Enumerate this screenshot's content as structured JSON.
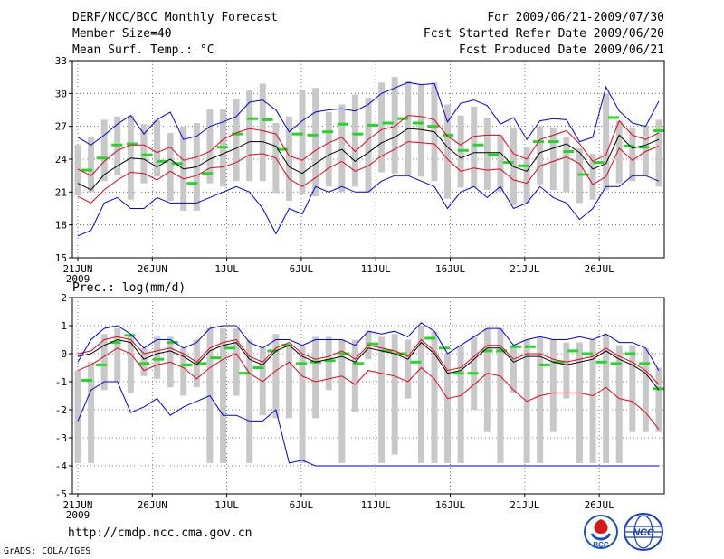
{
  "header": {
    "title": "DERF/NCC/BCC Monthly Forecast",
    "member_size": "Member Size=40",
    "variable": "Mean Surf. Temp.: °C",
    "period": "For 2009/06/21-2009/07/30",
    "started": "Fcst Started Refer Date 2009/06/20",
    "produced": "Fcst Produced Date 2009/06/21"
  },
  "footer": {
    "url": "http://cmdp.ncc.cma.gov.cn",
    "software": "GrADS: COLA/IGES"
  },
  "logos": [
    {
      "label": "BCC"
    },
    {
      "label": "NCC"
    }
  ],
  "colors": {
    "mean": "#000000",
    "spread": "#e8001c",
    "extreme": "#0000e0",
    "member": "#c8c8c8",
    "observed": "#22d822"
  },
  "chart_data": [
    {
      "type": "line",
      "title": "Mean Surf. Temp.: °C",
      "xlabel": "",
      "ylabel": "",
      "days": 40,
      "x_ticks": [
        {
          "day": 1,
          "label": "21JUN"
        },
        {
          "day": 6,
          "label": "26JUN"
        },
        {
          "day": 11,
          "label": "1JUL"
        },
        {
          "day": 16,
          "label": "6JUL"
        },
        {
          "day": 21,
          "label": "11JUL"
        },
        {
          "day": 26,
          "label": "16JUL"
        },
        {
          "day": 31,
          "label": "21JUL"
        },
        {
          "day": 36,
          "label": "26JUL"
        }
      ],
      "year_label": "2009",
      "y_ticks": [
        "15",
        "18",
        "21",
        "24",
        "27",
        "30",
        "33"
      ],
      "ylim": [
        15,
        33
      ],
      "grid": true,
      "series": [
        {
          "name": "ensemble mean",
          "role": "mean",
          "values": [
            21.8,
            21.2,
            22.6,
            23.4,
            24.1,
            24.0,
            23.3,
            24.0,
            23.1,
            23.3,
            24.0,
            24.5,
            25.0,
            25.6,
            25.6,
            25.2,
            23.3,
            22.7,
            23.6,
            24.4,
            24.9,
            23.8,
            24.6,
            25.5,
            26.0,
            26.8,
            26.7,
            26.5,
            25.1,
            24.1,
            24.6,
            24.6,
            24.6,
            23.3,
            22.9,
            24.6,
            25.0,
            25.4,
            24.6,
            23.1,
            23.6,
            26.2,
            25.0,
            25.3,
            25.8
          ]
        },
        {
          "name": "mean + spread",
          "role": "spread",
          "values": [
            23.1,
            22.5,
            23.8,
            24.8,
            25.3,
            25.3,
            24.6,
            25.1,
            23.9,
            24.2,
            24.7,
            25.8,
            26.4,
            26.8,
            26.6,
            26.3,
            24.3,
            23.9,
            24.8,
            25.5,
            26.0,
            24.7,
            25.8,
            26.7,
            27.0,
            28.0,
            27.9,
            27.6,
            26.1,
            25.3,
            26.1,
            26.2,
            26.2,
            24.5,
            24.0,
            25.8,
            26.2,
            26.6,
            25.4,
            23.8,
            24.4,
            27.5,
            26.2,
            25.8,
            26.4
          ]
        },
        {
          "name": "mean - spread",
          "role": "spread",
          "values": [
            20.6,
            20.0,
            21.2,
            22.1,
            22.8,
            22.7,
            22.1,
            22.9,
            22.2,
            22.5,
            23.2,
            23.3,
            23.7,
            24.4,
            24.5,
            24.1,
            22.2,
            21.5,
            22.3,
            23.2,
            23.8,
            22.9,
            23.4,
            24.3,
            24.9,
            25.6,
            25.5,
            25.4,
            24.0,
            22.9,
            23.2,
            23.0,
            23.1,
            22.1,
            21.8,
            23.4,
            23.8,
            24.2,
            23.6,
            21.7,
            22.4,
            25.0,
            23.9,
            24.7,
            25.2
          ]
        },
        {
          "name": "ensemble maximum",
          "role": "extreme",
          "values": [
            26.0,
            25.3,
            26.2,
            27.2,
            28.0,
            26.3,
            27.6,
            28.3,
            25.8,
            26.1,
            27.0,
            27.4,
            27.9,
            29.2,
            29.4,
            28.5,
            26.5,
            27.5,
            28.3,
            28.5,
            28.6,
            28.4,
            29.0,
            30.0,
            30.5,
            31.0,
            30.8,
            30.9,
            27.4,
            29.1,
            29.4,
            28.9,
            27.2,
            27.8,
            25.8,
            27.5,
            27.7,
            27.6,
            25.6,
            26.0,
            30.6,
            28.4,
            27.3,
            27.0,
            29.3
          ]
        },
        {
          "name": "ensemble minimum",
          "role": "extreme",
          "values": [
            17.0,
            17.5,
            20.0,
            20.5,
            19.5,
            19.5,
            20.5,
            20.0,
            20.0,
            20.0,
            20.5,
            21.0,
            21.5,
            21.0,
            19.5,
            17.2,
            19.5,
            19.0,
            21.5,
            21.0,
            21.5,
            21.0,
            21.0,
            22.0,
            22.5,
            22.5,
            22.0,
            21.5,
            19.5,
            21.0,
            21.5,
            20.5,
            21.5,
            19.5,
            20.0,
            21.5,
            20.5,
            20.0,
            18.5,
            19.5,
            21.5,
            21.5,
            22.5,
            22.5,
            22.0
          ]
        }
      ],
      "members": [
        [
          20.7,
          25.3
        ],
        [
          21.0,
          26.0
        ],
        [
          22.0,
          27.6
        ],
        [
          22.5,
          27.9
        ],
        [
          20.3,
          28.0
        ],
        [
          21.8,
          27.2
        ],
        [
          22.4,
          27.6
        ],
        [
          20.2,
          26.4
        ],
        [
          19.3,
          27.0
        ],
        [
          19.3,
          27.3
        ],
        [
          21.8,
          28.6
        ],
        [
          21.5,
          28.6
        ],
        [
          22.0,
          29.5
        ],
        [
          22.0,
          30.3
        ],
        [
          22.0,
          30.9
        ],
        [
          20.9,
          27.3
        ],
        [
          20.2,
          27.9
        ],
        [
          20.8,
          30.3
        ],
        [
          20.6,
          30.5
        ],
        [
          21.5,
          28.3
        ],
        [
          21.0,
          29.0
        ],
        [
          21.5,
          29.9
        ],
        [
          21.0,
          29.6
        ],
        [
          22.8,
          31.0
        ],
        [
          22.7,
          31.5
        ],
        [
          22.5,
          31.1
        ],
        [
          22.4,
          30.8
        ],
        [
          22.0,
          31.0
        ],
        [
          20.4,
          29.0
        ],
        [
          21.4,
          28.0
        ],
        [
          21.4,
          28.8
        ],
        [
          21.2,
          27.8
        ],
        [
          21.0,
          26.2
        ],
        [
          19.8,
          26.9
        ],
        [
          20.0,
          25.1
        ],
        [
          21.7,
          27.0
        ],
        [
          21.2,
          26.8
        ],
        [
          21.0,
          26.0
        ],
        [
          20.0,
          25.0
        ],
        [
          20.3,
          24.5
        ],
        [
          21.2,
          30.0
        ],
        [
          21.8,
          27.5
        ],
        [
          22.0,
          26.9
        ],
        [
          22.5,
          27.1
        ],
        [
          21.5,
          27.6
        ]
      ],
      "observed": [
        23.0,
        24.1,
        25.3,
        25.4,
        24.4,
        23.8,
        23.6,
        21.8,
        22.7,
        25.1,
        26.3,
        27.7,
        27.6,
        24.9,
        26.3,
        26.2,
        26.5,
        27.2,
        26.3,
        27.1,
        27.3,
        27.7,
        27.3,
        27.0,
        26.2,
        24.8,
        25.3,
        24.4,
        23.7,
        23.4,
        25.6,
        25.6,
        24.7,
        22.6,
        23.7,
        27.8,
        25.2,
        25.1,
        26.6
      ]
    },
    {
      "type": "line",
      "title": "Prec.: log(mm/d)",
      "xlabel": "",
      "ylabel": "",
      "days": 40,
      "x_ticks": [
        {
          "day": 1,
          "label": "21JUN"
        },
        {
          "day": 6,
          "label": "26JUN"
        },
        {
          "day": 11,
          "label": "1JUL"
        },
        {
          "day": 16,
          "label": "6JUL"
        },
        {
          "day": 21,
          "label": "11JUL"
        },
        {
          "day": 26,
          "label": "16JUL"
        },
        {
          "day": 31,
          "label": "21JUL"
        },
        {
          "day": 36,
          "label": "26JUL"
        }
      ],
      "year_label": "2009",
      "y_ticks": [
        "-5",
        "-4",
        "-3",
        "-2",
        "-1",
        "0",
        "1",
        "2"
      ],
      "ylim": [
        -5,
        2
      ],
      "grid": true,
      "series": [
        {
          "name": "ensemble mean",
          "role": "mean",
          "values": [
            -0.1,
            0.0,
            0.3,
            0.5,
            0.4,
            -0.2,
            0.0,
            0.1,
            -0.1,
            -0.4,
            0.1,
            0.3,
            0.4,
            -0.2,
            -0.4,
            0.1,
            0.3,
            -0.1,
            -0.3,
            -0.2,
            -0.1,
            -0.3,
            0.2,
            0.1,
            0.0,
            -0.2,
            0.4,
            0.0,
            -0.7,
            -0.6,
            -0.2,
            0.2,
            0.2,
            -0.3,
            -0.1,
            -0.1,
            -0.3,
            -0.4,
            -0.3,
            -0.2,
            0.1,
            -0.2,
            -0.4,
            -0.7,
            -1.3
          ]
        },
        {
          "name": "mean + spread",
          "role": "spread",
          "values": [
            0.0,
            0.1,
            0.5,
            0.6,
            0.5,
            0.0,
            0.1,
            0.2,
            0.0,
            -0.3,
            0.2,
            0.4,
            0.5,
            -0.1,
            -0.3,
            0.2,
            0.4,
            0.0,
            -0.2,
            -0.1,
            0.1,
            -0.2,
            0.3,
            0.2,
            0.1,
            -0.1,
            0.5,
            0.1,
            -0.6,
            -0.5,
            -0.1,
            0.3,
            0.3,
            -0.2,
            0.0,
            0.0,
            -0.2,
            -0.3,
            -0.2,
            -0.1,
            0.2,
            -0.1,
            -0.3,
            -0.6,
            -1.1
          ]
        },
        {
          "name": "mean - spread",
          "role": "spread",
          "values": [
            -0.6,
            -0.4,
            -0.1,
            0.2,
            0.0,
            -0.6,
            -0.4,
            -0.3,
            -0.5,
            -0.9,
            -0.5,
            -0.2,
            0.0,
            -0.7,
            -1.0,
            -0.6,
            -0.3,
            -0.8,
            -1.0,
            -0.9,
            -0.8,
            -1.1,
            -0.6,
            -0.7,
            -0.8,
            -1.0,
            -0.5,
            -0.9,
            -1.6,
            -1.5,
            -1.1,
            -0.7,
            -0.8,
            -1.3,
            -1.7,
            -1.5,
            -1.4,
            -1.4,
            -1.4,
            -1.5,
            -1.2,
            -1.6,
            -1.7,
            -2.1,
            -2.7
          ]
        },
        {
          "name": "ensemble maximum",
          "role": "extreme",
          "values": [
            -0.3,
            0.5,
            0.9,
            1.0,
            0.7,
            0.2,
            0.5,
            0.5,
            0.2,
            0.4,
            0.9,
            1.0,
            1.0,
            0.4,
            0.2,
            0.5,
            0.5,
            0.3,
            0.5,
            0.5,
            0.5,
            0.3,
            0.8,
            0.7,
            0.8,
            0.6,
            1.1,
            0.8,
            0.0,
            0.3,
            0.6,
            0.9,
            0.9,
            0.3,
            0.5,
            0.6,
            0.5,
            0.5,
            0.6,
            0.5,
            0.7,
            0.4,
            0.4,
            0.2,
            -0.6
          ]
        },
        {
          "name": "ensemble minimum",
          "role": "extreme",
          "values": [
            -2.4,
            -1.3,
            -1.0,
            -1.0,
            -2.1,
            -1.9,
            -1.6,
            -2.2,
            -1.9,
            -1.7,
            -1.5,
            -2.2,
            -2.2,
            -2.4,
            -2.4,
            -2.0,
            -3.9,
            -3.8,
            -4.0,
            -4.0,
            -4.0,
            -4.0,
            -4.0,
            -4.0,
            -4.0,
            -4.0,
            -4.0,
            -4.0,
            -4.0,
            -4.0,
            -4.0,
            -4.0,
            -4.0,
            -4.0,
            -4.0,
            -4.0,
            -4.0,
            -4.0,
            -4.0,
            -4.0,
            -4.0,
            -4.0,
            -4.0,
            -4.0,
            -4.0
          ]
        },
        {
          "name": "observed mean",
          "role": "mean",
          "values": [
            -0.5,
            -0.4,
            0.4,
            0.5,
            0.2,
            -0.3,
            -0.1,
            0.1,
            -0.3,
            -0.5,
            -0.2,
            0.4,
            0.4,
            -0.4,
            -0.5,
            0.0,
            0.3,
            -0.2,
            -0.4,
            -0.3,
            -0.2,
            -0.4,
            0.1,
            0.0,
            -0.1,
            -0.3,
            0.3,
            -0.1,
            -0.8,
            -0.7,
            -0.3,
            0.1,
            0.1,
            -0.4,
            -0.2,
            -0.2,
            -0.4,
            -0.5,
            -0.4,
            -0.3,
            0.0,
            -0.3,
            -0.5,
            -0.8,
            -1.5
          ]
        }
      ],
      "members": [
        [
          -3.9,
          -0.6
        ],
        [
          -3.9,
          -0.3
        ],
        [
          -1.3,
          0.7
        ],
        [
          -1.0,
          0.9
        ],
        [
          -1.4,
          0.7
        ],
        [
          -0.8,
          0.2
        ],
        [
          -0.9,
          0.6
        ],
        [
          -1.2,
          0.6
        ],
        [
          -1.5,
          0.2
        ],
        [
          -1.2,
          0.5
        ],
        [
          -3.9,
          0.9
        ],
        [
          -3.9,
          0.9
        ],
        [
          -1.5,
          0.9
        ],
        [
          -3.9,
          0.5
        ],
        [
          -2.2,
          0.2
        ],
        [
          -2.3,
          0.7
        ],
        [
          -2.3,
          0.3
        ],
        [
          -3.9,
          0.3
        ],
        [
          -2.3,
          0.6
        ],
        [
          -1.3,
          0.6
        ],
        [
          -3.9,
          0.5
        ],
        [
          -2.1,
          0.5
        ],
        [
          -0.2,
          0.8
        ],
        [
          -3.9,
          0.6
        ],
        [
          -3.6,
          0.7
        ],
        [
          -1.6,
          0.5
        ],
        [
          -3.9,
          1.0
        ],
        [
          -3.9,
          0.8
        ],
        [
          -3.9,
          0.0
        ],
        [
          -3.9,
          0.3
        ],
        [
          -2.0,
          0.6
        ],
        [
          -2.8,
          0.9
        ],
        [
          -3.9,
          0.9
        ],
        [
          -1.4,
          0.3
        ],
        [
          -3.9,
          0.5
        ],
        [
          -3.9,
          0.6
        ],
        [
          -2.8,
          0.5
        ],
        [
          -1.6,
          0.4
        ],
        [
          -3.9,
          0.4
        ],
        [
          -3.9,
          0.5
        ],
        [
          -3.9,
          0.7
        ],
        [
          -3.9,
          0.3
        ],
        [
          -2.8,
          0.3
        ],
        [
          -2.8,
          0.2
        ],
        [
          -2.8,
          -0.5
        ]
      ],
      "observed": [
        -0.95,
        -0.4,
        0.4,
        0.65,
        -0.35,
        -0.2,
        0.4,
        -0.4,
        -0.35,
        -0.15,
        0.2,
        -0.7,
        -0.5,
        0.1,
        0.3,
        -0.35,
        -0.3,
        -0.25,
        0.0,
        -0.35,
        0.35,
        0.1,
        0.0,
        -0.3,
        0.55,
        0.2,
        -0.7,
        -0.7,
        0.1,
        0.1,
        0.25,
        0.25,
        -0.4,
        -0.3,
        0.1,
        0.0,
        -0.3,
        -0.35,
        0.0,
        -0.35,
        -1.25
      ]
    }
  ]
}
